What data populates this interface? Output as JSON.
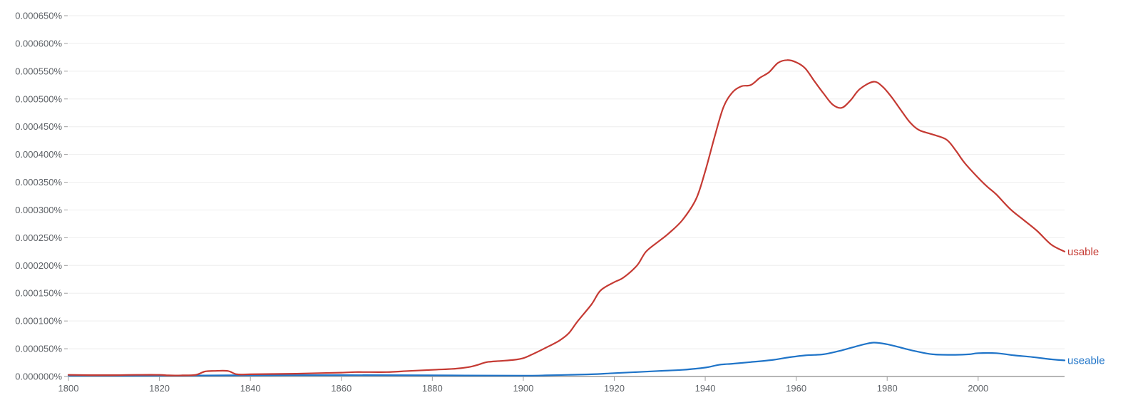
{
  "chart_data": {
    "type": "line",
    "title": "",
    "xlabel": "",
    "ylabel": "",
    "xlim": [
      1800,
      2019
    ],
    "ylim": [
      0,
      0.00065
    ],
    "grid": true,
    "x_ticks": [
      {
        "value": 1800,
        "label": "1800"
      },
      {
        "value": 1820,
        "label": "1820"
      },
      {
        "value": 1840,
        "label": "1840"
      },
      {
        "value": 1860,
        "label": "1860"
      },
      {
        "value": 1880,
        "label": "1880"
      },
      {
        "value": 1900,
        "label": "1900"
      },
      {
        "value": 1920,
        "label": "1920"
      },
      {
        "value": 1940,
        "label": "1940"
      },
      {
        "value": 1960,
        "label": "1960"
      },
      {
        "value": 1980,
        "label": "1980"
      },
      {
        "value": 2000,
        "label": "2000"
      }
    ],
    "y_ticks": [
      {
        "value": 0.0,
        "label": "0.000000%"
      },
      {
        "value": 5e-05,
        "label": "0.000050%"
      },
      {
        "value": 0.0001,
        "label": "0.000100%"
      },
      {
        "value": 0.00015,
        "label": "0.000150%"
      },
      {
        "value": 0.0002,
        "label": "0.000200%"
      },
      {
        "value": 0.00025,
        "label": "0.000250%"
      },
      {
        "value": 0.0003,
        "label": "0.000300%"
      },
      {
        "value": 0.00035,
        "label": "0.000350%"
      },
      {
        "value": 0.0004,
        "label": "0.000400%"
      },
      {
        "value": 0.00045,
        "label": "0.000450%"
      },
      {
        "value": 0.0005,
        "label": "0.000500%"
      },
      {
        "value": 0.00055,
        "label": "0.000550%"
      },
      {
        "value": 0.0006,
        "label": "0.000600%"
      },
      {
        "value": 0.00065,
        "label": "0.000650%"
      }
    ],
    "series": [
      {
        "name": "usable",
        "color": "#c53a33",
        "points": [
          [
            1800,
            3e-06
          ],
          [
            1805,
            2.5e-06
          ],
          [
            1810,
            2.5e-06
          ],
          [
            1815,
            3e-06
          ],
          [
            1820,
            3e-06
          ],
          [
            1822,
            2e-06
          ],
          [
            1825,
            2e-06
          ],
          [
            1828,
            3e-06
          ],
          [
            1830,
            9e-06
          ],
          [
            1832,
            1e-05
          ],
          [
            1835,
            1e-05
          ],
          [
            1837,
            4e-06
          ],
          [
            1840,
            4e-06
          ],
          [
            1845,
            4.5e-06
          ],
          [
            1850,
            5e-06
          ],
          [
            1855,
            6e-06
          ],
          [
            1860,
            7e-06
          ],
          [
            1863,
            8e-06
          ],
          [
            1865,
            8e-06
          ],
          [
            1870,
            8e-06
          ],
          [
            1875,
            1e-05
          ],
          [
            1880,
            1.2e-05
          ],
          [
            1885,
            1.4e-05
          ],
          [
            1888,
            1.7e-05
          ],
          [
            1890,
            2.1e-05
          ],
          [
            1892,
            2.6e-05
          ],
          [
            1895,
            2.8e-05
          ],
          [
            1898,
            3e-05
          ],
          [
            1900,
            3.3e-05
          ],
          [
            1902,
            4e-05
          ],
          [
            1905,
            5.2e-05
          ],
          [
            1908,
            6.5e-05
          ],
          [
            1910,
            7.8e-05
          ],
          [
            1912,
            0.0001
          ],
          [
            1915,
            0.00013
          ],
          [
            1917,
            0.000155
          ],
          [
            1920,
            0.00017
          ],
          [
            1922,
            0.000178
          ],
          [
            1925,
            0.0002
          ],
          [
            1927,
            0.000225
          ],
          [
            1930,
            0.000245
          ],
          [
            1932,
            0.000258
          ],
          [
            1935,
            0.000282
          ],
          [
            1938,
            0.00032
          ],
          [
            1940,
            0.00037
          ],
          [
            1942,
            0.00043
          ],
          [
            1944,
            0.000485
          ],
          [
            1946,
            0.000512
          ],
          [
            1948,
            0.000523
          ],
          [
            1950,
            0.000525
          ],
          [
            1952,
            0.000538
          ],
          [
            1954,
            0.000548
          ],
          [
            1956,
            0.000565
          ],
          [
            1958,
            0.00057
          ],
          [
            1960,
            0.000566
          ],
          [
            1962,
            0.000555
          ],
          [
            1964,
            0.000532
          ],
          [
            1966,
            0.00051
          ],
          [
            1968,
            0.00049
          ],
          [
            1970,
            0.000484
          ],
          [
            1972,
            0.000498
          ],
          [
            1974,
            0.000518
          ],
          [
            1977,
            0.000531
          ],
          [
            1979,
            0.000522
          ],
          [
            1981,
            0.000503
          ],
          [
            1983,
            0.00048
          ],
          [
            1985,
            0.000458
          ],
          [
            1987,
            0.000444
          ],
          [
            1990,
            0.000436
          ],
          [
            1993,
            0.000427
          ],
          [
            1995,
            0.000408
          ],
          [
            1997,
            0.000385
          ],
          [
            2000,
            0.000358
          ],
          [
            2002,
            0.000342
          ],
          [
            2004,
            0.000328
          ],
          [
            2007,
            0.000302
          ],
          [
            2010,
            0.000282
          ],
          [
            2013,
            0.000262
          ],
          [
            2016,
            0.000238
          ],
          [
            2019,
            0.000225
          ]
        ]
      },
      {
        "name": "useable",
        "color": "#1f74c8",
        "points": [
          [
            1800,
            1.5e-06
          ],
          [
            1820,
            1.5e-06
          ],
          [
            1835,
            2e-06
          ],
          [
            1860,
            2.5e-06
          ],
          [
            1880,
            2e-06
          ],
          [
            1900,
            1.5e-06
          ],
          [
            1905,
            2e-06
          ],
          [
            1910,
            3e-06
          ],
          [
            1915,
            4e-06
          ],
          [
            1920,
            6e-06
          ],
          [
            1925,
            8e-06
          ],
          [
            1930,
            1e-05
          ],
          [
            1935,
            1.2e-05
          ],
          [
            1940,
            1.6e-05
          ],
          [
            1943,
            2.1e-05
          ],
          [
            1946,
            2.3e-05
          ],
          [
            1950,
            2.6e-05
          ],
          [
            1955,
            3e-05
          ],
          [
            1958,
            3.4e-05
          ],
          [
            1962,
            3.8e-05
          ],
          [
            1966,
            4e-05
          ],
          [
            1970,
            4.7e-05
          ],
          [
            1974,
            5.6e-05
          ],
          [
            1977,
            6.1e-05
          ],
          [
            1980,
            5.8e-05
          ],
          [
            1983,
            5.2e-05
          ],
          [
            1986,
            4.6e-05
          ],
          [
            1990,
            4e-05
          ],
          [
            1995,
            3.9e-05
          ],
          [
            1998,
            4e-05
          ],
          [
            2000,
            4.2e-05
          ],
          [
            2004,
            4.2e-05
          ],
          [
            2008,
            3.8e-05
          ],
          [
            2012,
            3.5e-05
          ],
          [
            2016,
            3.1e-05
          ],
          [
            2019,
            2.9e-05
          ]
        ]
      }
    ]
  }
}
